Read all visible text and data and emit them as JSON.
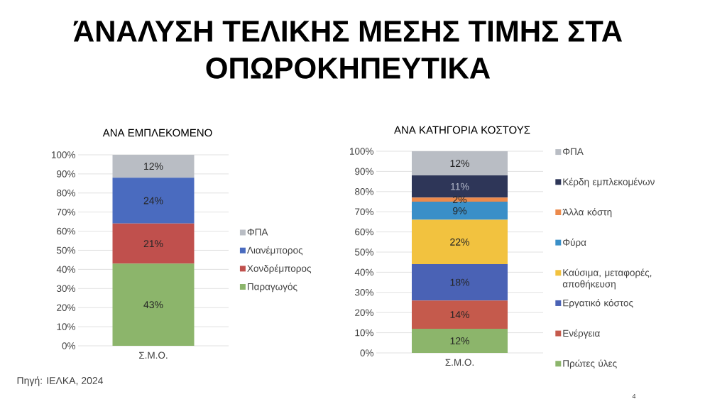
{
  "chart_data": [
    {
      "type": "bar",
      "title": "ΆΝΑΛΥΣΗ ΤΕΛΙΚΗΣ ΜΕΣΗΣ ΤΙΜΗΣ ΣΤΑ ΟΠΩΡΟΚΗΠΕΥΤΙΚΑ",
      "subtitle": "ΑΝΑ ΕΜΠΛΕΚΟΜΕΝΟ",
      "categories": [
        "Σ.Μ.Ο."
      ],
      "stacked": true,
      "series": [
        {
          "name": "Παραγωγός",
          "color": "#8cb56b",
          "values": [
            43
          ],
          "value_labels": [
            "43%"
          ]
        },
        {
          "name": "Χονδρέμπορος",
          "color": "#c0504d",
          "values": [
            21
          ],
          "value_labels": [
            "21%"
          ]
        },
        {
          "name": "Λιανέμπορος",
          "color": "#4a6bbf",
          "values": [
            24
          ],
          "value_labels": [
            "24%"
          ]
        },
        {
          "name": "ΦΠΑ",
          "color": "#b9bdc4",
          "values": [
            12
          ],
          "value_labels": [
            "12%"
          ]
        }
      ],
      "ylim": [
        0,
        100
      ],
      "yticks": [
        {
          "value": 0,
          "label": "0%"
        },
        {
          "value": 10,
          "label": "10%"
        },
        {
          "value": 20,
          "label": "20%"
        },
        {
          "value": 30,
          "label": "30%"
        },
        {
          "value": 40,
          "label": "40%"
        },
        {
          "value": 50,
          "label": "50%"
        },
        {
          "value": 60,
          "label": "60%"
        },
        {
          "value": 70,
          "label": "70%"
        },
        {
          "value": 80,
          "label": "80%"
        },
        {
          "value": 90,
          "label": "90%"
        },
        {
          "value": 100,
          "label": "100%"
        }
      ],
      "grid": "y",
      "legend": "right",
      "annotations": [
        "Πηγή: ΙΕΛΚΑ, 2024"
      ]
    },
    {
      "type": "bar",
      "title": "ΑΝΑ ΚΑΤΗΓΟΡΙΑ ΚΟΣΤΟΥΣ",
      "categories": [
        "Σ.Μ.Ο."
      ],
      "stacked": true,
      "series": [
        {
          "name": "Πρώτες ύλες",
          "color": "#8cb56b",
          "values": [
            12
          ],
          "value_labels": [
            "12%"
          ]
        },
        {
          "name": "Ενέργεια",
          "color": "#c55a4c",
          "values": [
            14
          ],
          "value_labels": [
            "14%"
          ]
        },
        {
          "name": "Εργατικό κόστος",
          "color": "#4a62b5",
          "values": [
            18
          ],
          "value_labels": [
            "18%"
          ]
        },
        {
          "name": "Καύσιμα, μεταφορές, αποθήκευση",
          "color": "#f2c23f",
          "values": [
            22
          ],
          "value_labels": [
            "22%"
          ]
        },
        {
          "name": "Φύρα",
          "color": "#3a8fc8",
          "values": [
            9
          ],
          "value_labels": [
            "9%"
          ]
        },
        {
          "name": "Άλλα κόστη",
          "color": "#ec8a4c",
          "values": [
            2
          ],
          "value_labels": [
            "2%"
          ]
        },
        {
          "name": "Κέρδη εμπλεκομένων",
          "color": "#2e3658",
          "values": [
            11
          ],
          "value_labels": [
            "11%"
          ]
        },
        {
          "name": "ΦΠΑ",
          "color": "#b9bdc4",
          "values": [
            12
          ],
          "value_labels": [
            "12%"
          ]
        }
      ],
      "ylim": [
        0,
        100
      ],
      "yticks": [
        {
          "value": 0,
          "label": "0%"
        },
        {
          "value": 10,
          "label": "10%"
        },
        {
          "value": 20,
          "label": "20%"
        },
        {
          "value": 30,
          "label": "30%"
        },
        {
          "value": 40,
          "label": "40%"
        },
        {
          "value": 50,
          "label": "50%"
        },
        {
          "value": 60,
          "label": "60%"
        },
        {
          "value": 70,
          "label": "70%"
        },
        {
          "value": 80,
          "label": "80%"
        },
        {
          "value": 90,
          "label": "90%"
        },
        {
          "value": 100,
          "label": "100%"
        }
      ],
      "grid": "y",
      "legend": "right",
      "annotations": [
        "4"
      ]
    }
  ]
}
